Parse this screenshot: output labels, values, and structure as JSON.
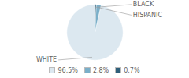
{
  "chart_data": {
    "type": "pie",
    "categories": [
      "WHITE",
      "HISPANIC",
      "BLACK"
    ],
    "values": [
      96.5,
      2.8,
      0.7
    ],
    "value_labels": [
      "96.5%",
      "2.8%",
      "0.7%"
    ],
    "colors": [
      "#dce8f0",
      "#7aafc9",
      "#2e5f7a"
    ],
    "legend": "bottom"
  }
}
